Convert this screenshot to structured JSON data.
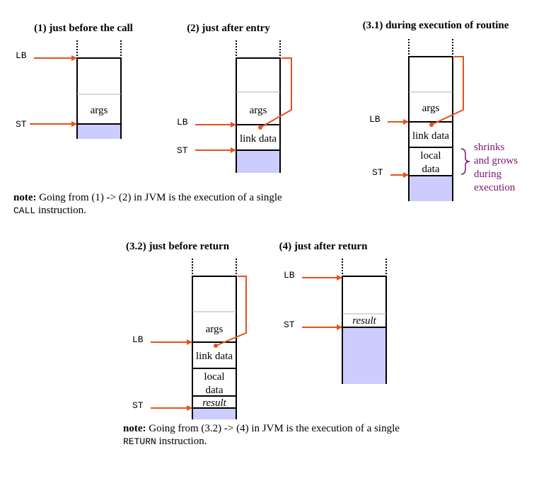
{
  "titles": {
    "p1": "(1) just before the call",
    "p2": "(2) just after entry",
    "p31": "(3.1) during execution of routine",
    "p32": "(3.2) just before return",
    "p4": "(4) just after return"
  },
  "pointers": {
    "lb": "LB",
    "st": "ST"
  },
  "cells": {
    "args": "args",
    "link_data": "link data",
    "local": "local",
    "data": "data",
    "result": "result"
  },
  "side_note": [
    "shrinks",
    "and grows",
    "during",
    "execution"
  ],
  "notes": {
    "note1": {
      "bold": "note:",
      "text": " Going from (1) -> (2) in JVM is the execution of a single",
      "code": "CALL",
      "tail": " instruction."
    },
    "note2": {
      "bold": "note:",
      "text": " Going from (3.2) -> (4) in JVM is the execution of a single",
      "code": "RETURN",
      "tail": " instruction."
    }
  },
  "colors": {
    "pointer": "#e8501e",
    "free_space": "#ccccff",
    "side_note": "#7a1670",
    "divider": "#b0b0b0"
  }
}
